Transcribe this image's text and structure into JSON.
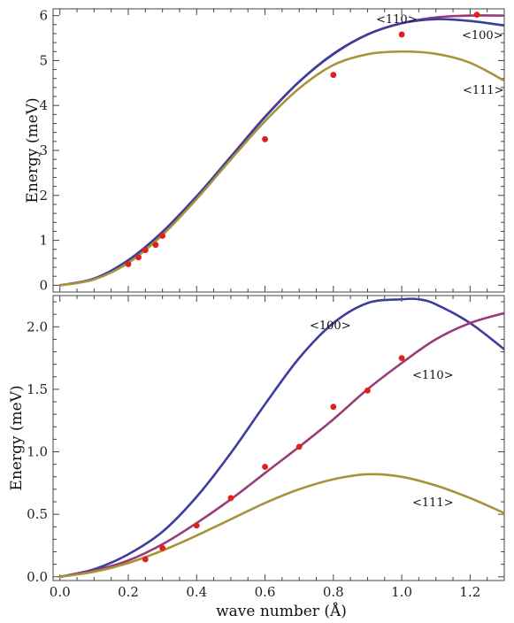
{
  "chart_data": [
    {
      "type": "line",
      "panel": "top",
      "xlim": [
        -0.02,
        1.3
      ],
      "ylim": [
        -0.15,
        6.15
      ],
      "ylabel": "Energy (meV)",
      "yticks": [
        "0",
        "1",
        "2",
        "3",
        "4",
        "5",
        "6"
      ],
      "xticks_shown": false,
      "grid": false,
      "series": [
        {
          "name": "<110>",
          "color": "#9b3a7a",
          "x": [
            0,
            0.1,
            0.2,
            0.3,
            0.4,
            0.5,
            0.6,
            0.7,
            0.8,
            0.9,
            1.0,
            1.1,
            1.2,
            1.3
          ],
          "values": [
            0,
            0.14,
            0.54,
            1.17,
            1.97,
            2.86,
            3.75,
            4.53,
            5.14,
            5.58,
            5.83,
            5.96,
            6.0,
            6.0
          ]
        },
        {
          "name": "<100>",
          "color": "#3d3d9e",
          "x": [
            0,
            0.1,
            0.2,
            0.3,
            0.4,
            0.5,
            0.6,
            0.7,
            0.8,
            0.9,
            1.0,
            1.1,
            1.2,
            1.3
          ],
          "values": [
            0,
            0.15,
            0.56,
            1.19,
            1.98,
            2.86,
            3.74,
            4.53,
            5.15,
            5.58,
            5.83,
            5.92,
            5.88,
            5.78
          ]
        },
        {
          "name": "<111>",
          "color": "#a8923a",
          "x": [
            0,
            0.1,
            0.2,
            0.3,
            0.4,
            0.5,
            0.6,
            0.7,
            0.8,
            0.9,
            1.0,
            1.1,
            1.2,
            1.3
          ],
          "values": [
            0,
            0.13,
            0.5,
            1.12,
            1.92,
            2.8,
            3.65,
            4.38,
            4.9,
            5.14,
            5.2,
            5.15,
            4.95,
            4.55
          ]
        }
      ],
      "points": {
        "color": "#e0201a",
        "x": [
          0.2,
          0.23,
          0.25,
          0.28,
          0.3,
          0.6,
          0.8,
          1.0,
          1.22
        ],
        "y": [
          0.47,
          0.62,
          0.78,
          0.9,
          1.1,
          3.25,
          4.68,
          5.58,
          6.02
        ]
      },
      "annotations": [
        "<110>",
        "<100>",
        "<111>"
      ]
    },
    {
      "type": "line",
      "panel": "bottom",
      "xlim": [
        -0.02,
        1.3
      ],
      "ylim": [
        -0.03,
        2.25
      ],
      "xlabel": "wave number (Å)",
      "ylabel": "Energy (meV)",
      "xticks": [
        "0.0",
        "0.2",
        "0.4",
        "0.6",
        "0.8",
        "1.0",
        "1.2"
      ],
      "yticks": [
        "0.0",
        "0.5",
        "1.0",
        "1.5",
        "2.0"
      ],
      "grid": false,
      "series": [
        {
          "name": "<100>",
          "color": "#3d3d9e",
          "x": [
            0,
            0.1,
            0.2,
            0.3,
            0.4,
            0.5,
            0.6,
            0.7,
            0.8,
            0.9,
            1.0,
            1.05,
            1.1,
            1.2,
            1.3
          ],
          "values": [
            0,
            0.06,
            0.18,
            0.36,
            0.64,
            0.99,
            1.38,
            1.75,
            2.03,
            2.19,
            2.22,
            2.22,
            2.18,
            2.03,
            1.82
          ]
        },
        {
          "name": "<110>",
          "color": "#9b3a7a",
          "x": [
            0,
            0.1,
            0.2,
            0.3,
            0.4,
            0.5,
            0.6,
            0.7,
            0.8,
            0.9,
            1.0,
            1.1,
            1.2,
            1.3
          ],
          "values": [
            0,
            0.05,
            0.13,
            0.26,
            0.43,
            0.62,
            0.83,
            1.04,
            1.26,
            1.5,
            1.71,
            1.9,
            2.03,
            2.11
          ]
        },
        {
          "name": "<111>",
          "color": "#a8923a",
          "x": [
            0,
            0.1,
            0.2,
            0.3,
            0.4,
            0.5,
            0.6,
            0.7,
            0.8,
            0.9,
            1.0,
            1.1,
            1.2,
            1.3
          ],
          "values": [
            0,
            0.04,
            0.11,
            0.21,
            0.33,
            0.46,
            0.59,
            0.7,
            0.78,
            0.82,
            0.8,
            0.73,
            0.63,
            0.51
          ]
        }
      ],
      "points": {
        "color": "#e0201a",
        "x": [
          0.25,
          0.3,
          0.4,
          0.5,
          0.6,
          0.7,
          0.8,
          0.9,
          1.0
        ],
        "y": [
          0.14,
          0.23,
          0.41,
          0.63,
          0.88,
          1.04,
          1.36,
          1.49,
          1.75
        ]
      },
      "annotations": [
        "<100>",
        "<110>",
        "<111>"
      ]
    }
  ]
}
